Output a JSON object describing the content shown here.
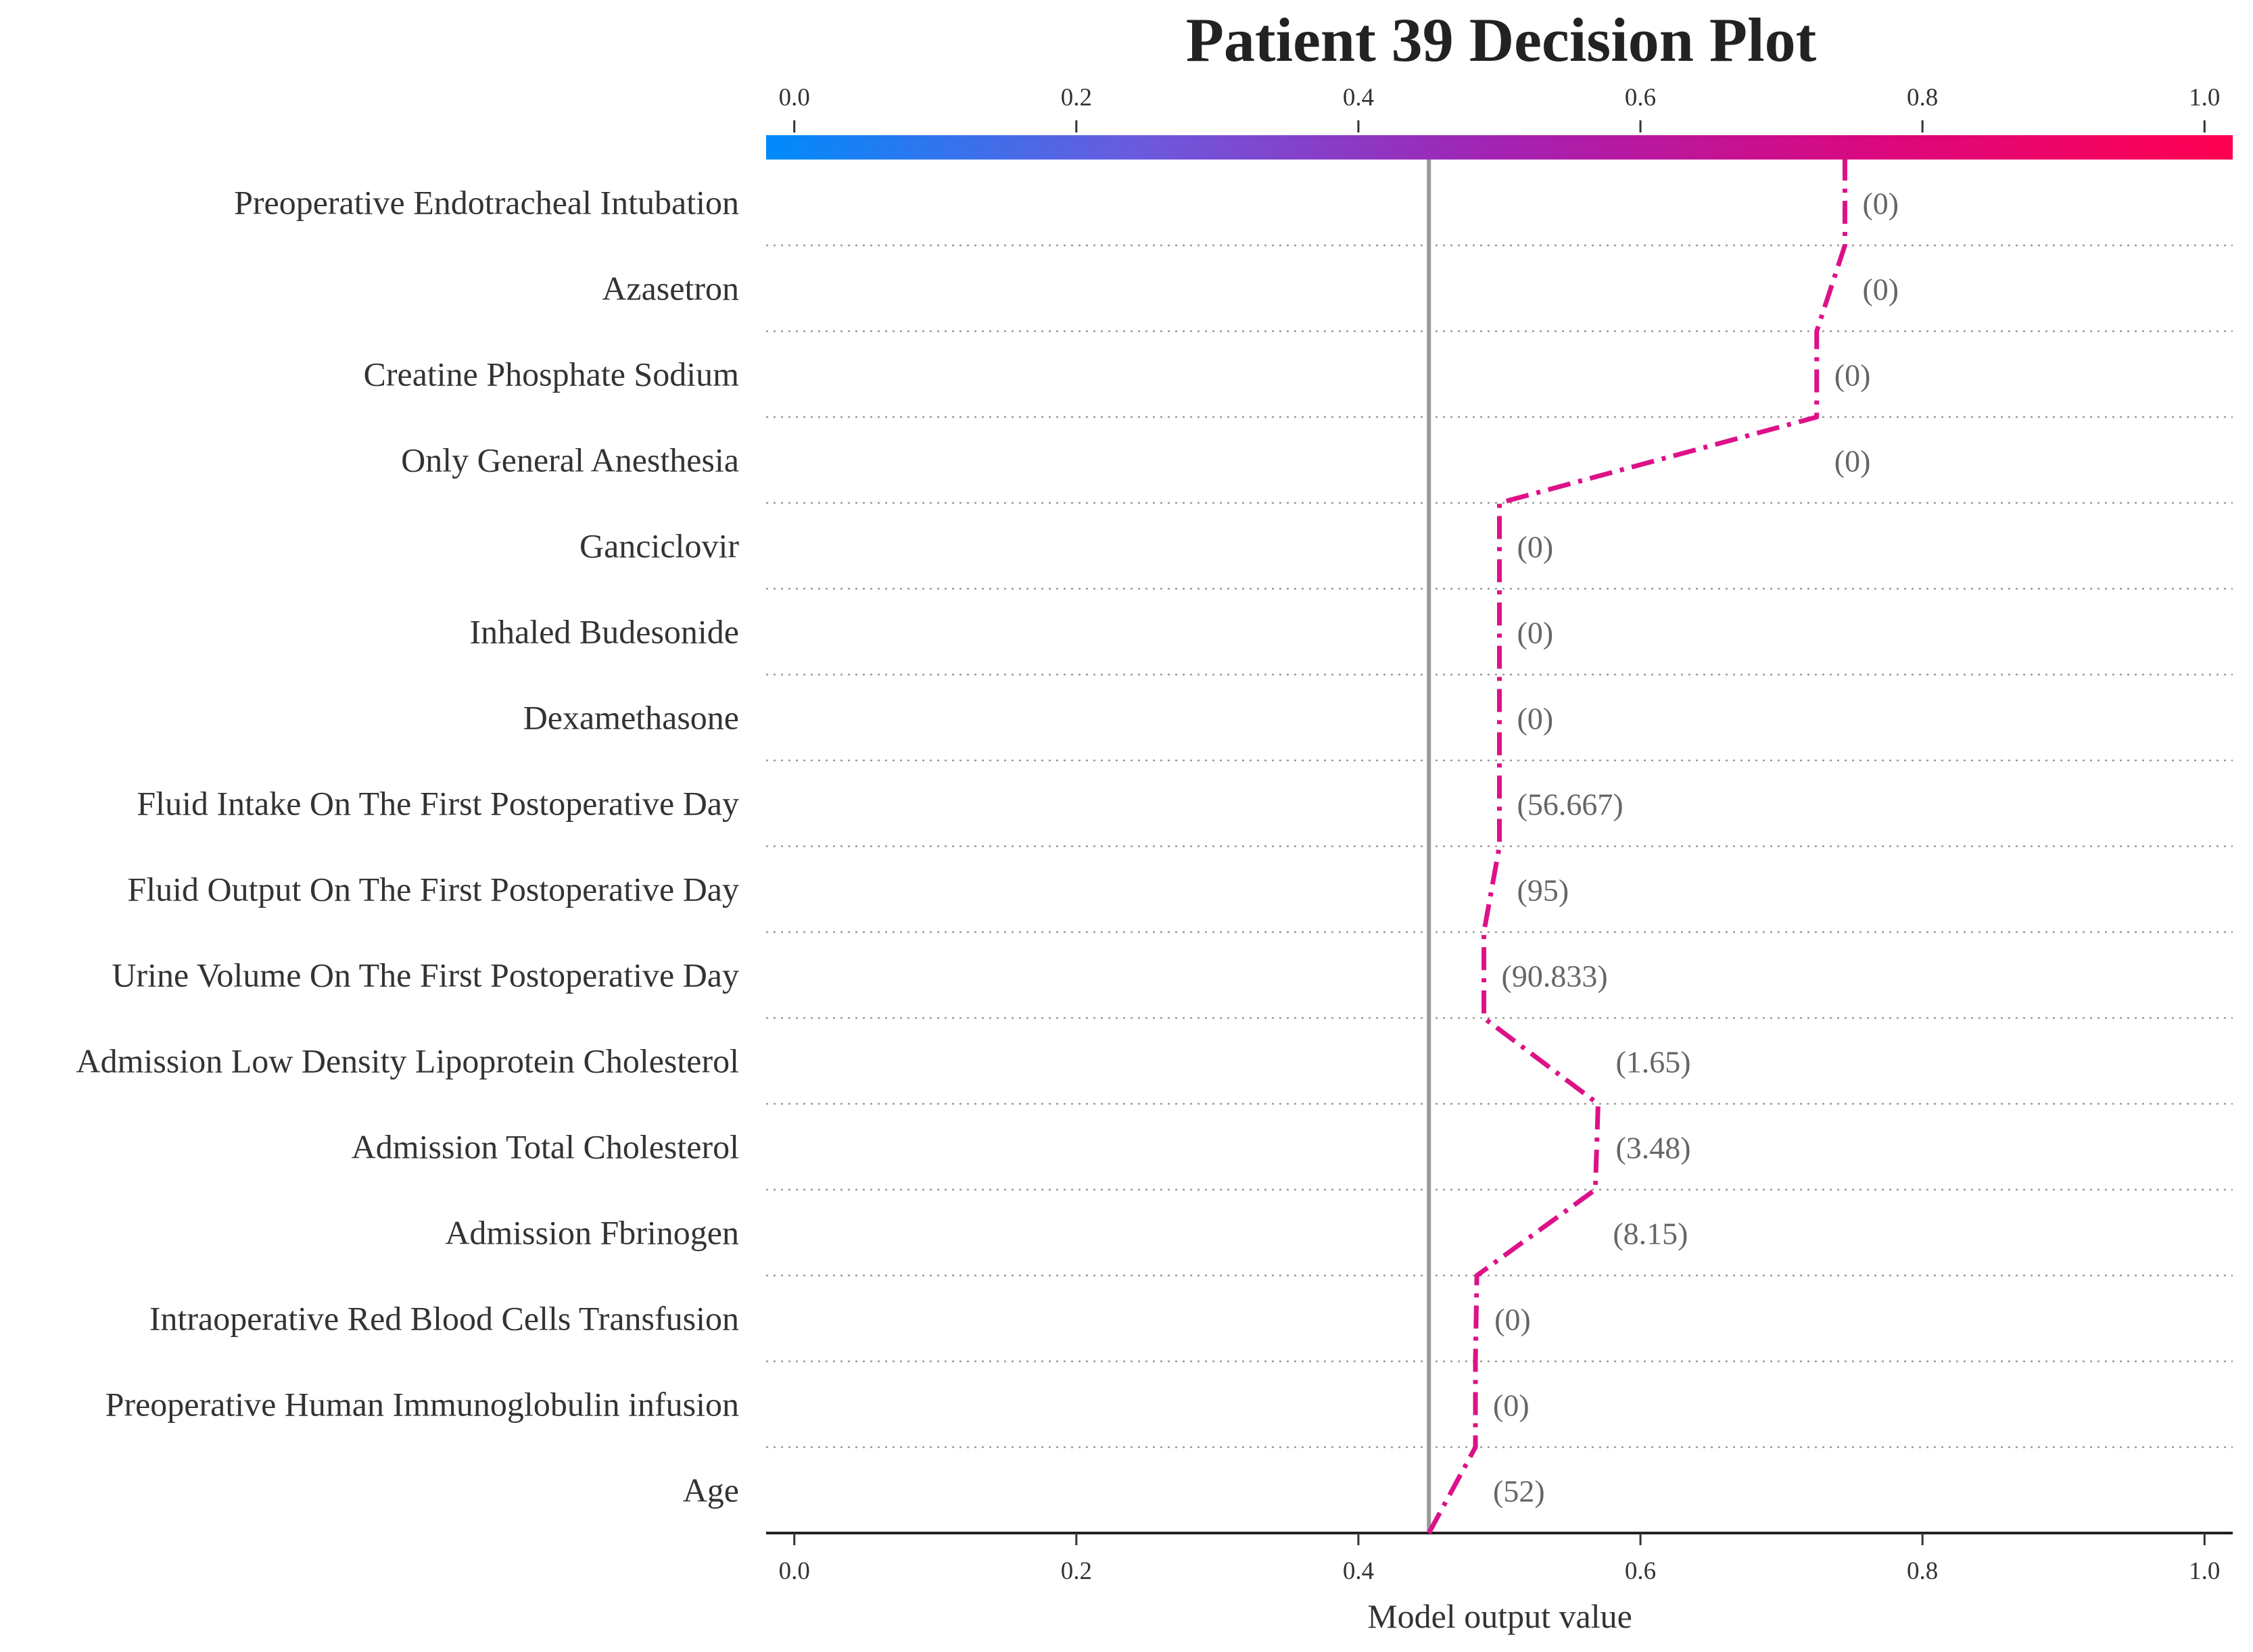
{
  "chart_data": {
    "type": "line",
    "title": "Patient 39 Decision Plot",
    "xlabel": "Model output value",
    "ylabel": "",
    "xlim": [
      -0.02,
      1.02
    ],
    "xticks": [
      0.0,
      0.2,
      0.4,
      0.6,
      0.8,
      1.0
    ],
    "xtick_labels": [
      "0.0",
      "0.2",
      "0.4",
      "0.6",
      "0.8",
      "1.0"
    ],
    "base_value": 0.45,
    "line_color": "#dd1188",
    "colormap": [
      "#008bfb",
      "#6a5bde",
      "#a322b2",
      "#d9087f",
      "#ff0051"
    ],
    "features": [
      {
        "name": "Preoperative Endotracheal Intubation",
        "value": "(0)",
        "cum": 0.745
      },
      {
        "name": "Azasetron",
        "value": "(0)",
        "cum": 0.745
      },
      {
        "name": "Creatine Phosphate Sodium",
        "value": "(0)",
        "cum": 0.725
      },
      {
        "name": "Only General Anesthesia",
        "value": "(0)",
        "cum": 0.725
      },
      {
        "name": "Ganciclovir",
        "value": "(0)",
        "cum": 0.5
      },
      {
        "name": "Inhaled Budesonide",
        "value": "(0)",
        "cum": 0.5
      },
      {
        "name": "Dexamethasone",
        "value": "(0)",
        "cum": 0.5
      },
      {
        "name": "Fluid Intake On The First Postoperative Day",
        "value": "(56.667)",
        "cum": 0.5
      },
      {
        "name": "Fluid Output On The First Postoperative Day",
        "value": "(95)",
        "cum": 0.5
      },
      {
        "name": "Urine Volume On The First Postoperative Day",
        "value": "(90.833)",
        "cum": 0.489
      },
      {
        "name": "Admission Low Density Lipoprotein Cholesterol",
        "value": "(1.65)",
        "cum": 0.489
      },
      {
        "name": "Admission Total Cholesterol",
        "value": "(3.48)",
        "cum": 0.57
      },
      {
        "name": "Admission Fbrinogen",
        "value": "(8.15)",
        "cum": 0.568
      },
      {
        "name": "Intraoperative Red Blood Cells Transfusion",
        "value": "(0)",
        "cum": 0.484
      },
      {
        "name": "Preoperative Human Immunoglobulin infusion",
        "value": "(0)",
        "cum": 0.483
      },
      {
        "name": "Age",
        "value": "(52)",
        "cum": 0.483
      }
    ],
    "grid": "dotted horizontal separators"
  }
}
